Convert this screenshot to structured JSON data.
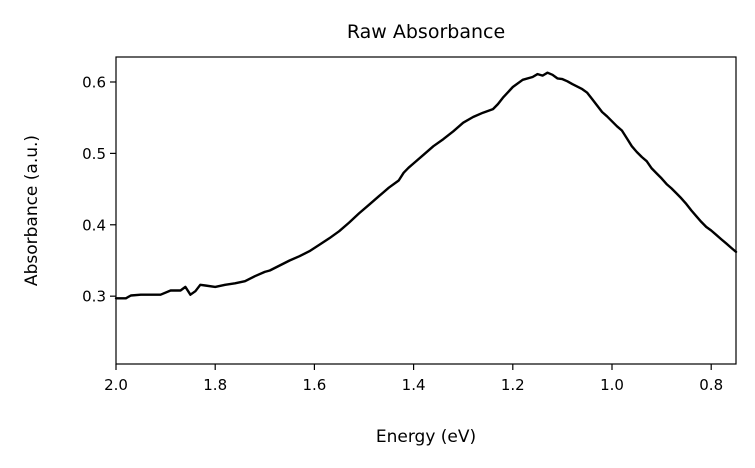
{
  "chart_data": {
    "type": "line",
    "title": "Raw Absorbance",
    "xlabel": "Energy (eV)",
    "ylabel": "Absorbance (a.u.)",
    "x_reversed": true,
    "xlim": [
      2.0,
      0.75
    ],
    "ylim": [
      0.205,
      0.635
    ],
    "x_ticks": [
      2.0,
      1.8,
      1.6,
      1.4,
      1.2,
      1.0,
      0.8
    ],
    "x_tick_labels": [
      "2.0",
      "1.8",
      "1.6",
      "1.4",
      "1.2",
      "1.0",
      "0.8"
    ],
    "y_ticks": [
      0.3,
      0.4,
      0.5,
      0.6
    ],
    "y_tick_labels": [
      "0.3",
      "0.4",
      "0.5",
      "0.6"
    ],
    "grid": false,
    "line_color": "#000000",
    "series": [
      {
        "x": [
          2.0,
          1.98,
          1.97,
          1.95,
          1.93,
          1.91,
          1.89,
          1.87,
          1.86,
          1.85,
          1.84,
          1.83,
          1.82,
          1.8,
          1.78,
          1.76,
          1.74,
          1.72,
          1.7,
          1.69,
          1.67,
          1.65,
          1.63,
          1.61,
          1.59,
          1.57,
          1.55,
          1.53,
          1.51,
          1.49,
          1.47,
          1.45,
          1.43,
          1.42,
          1.41,
          1.4,
          1.38,
          1.36,
          1.34,
          1.32,
          1.3,
          1.28,
          1.26,
          1.24,
          1.23,
          1.22,
          1.2,
          1.18,
          1.16,
          1.15,
          1.14,
          1.13,
          1.12,
          1.11,
          1.1,
          1.09,
          1.08,
          1.06,
          1.05,
          1.04,
          1.03,
          1.02,
          1.01,
          1.0,
          0.99,
          0.98,
          0.97,
          0.96,
          0.95,
          0.94,
          0.93,
          0.92,
          0.91,
          0.9,
          0.89,
          0.88,
          0.87,
          0.86,
          0.85,
          0.84,
          0.83,
          0.82,
          0.81,
          0.8,
          0.79,
          0.78,
          0.77,
          0.76,
          0.75
        ],
        "y": [
          0.297,
          0.297,
          0.301,
          0.302,
          0.302,
          0.302,
          0.308,
          0.308,
          0.313,
          0.302,
          0.307,
          0.316,
          0.315,
          0.313,
          0.316,
          0.318,
          0.321,
          0.328,
          0.334,
          0.336,
          0.343,
          0.35,
          0.356,
          0.363,
          0.372,
          0.381,
          0.391,
          0.403,
          0.416,
          0.428,
          0.44,
          0.452,
          0.462,
          0.473,
          0.48,
          0.486,
          0.498,
          0.51,
          0.52,
          0.531,
          0.543,
          0.551,
          0.557,
          0.562,
          0.569,
          0.578,
          0.593,
          0.603,
          0.607,
          0.611,
          0.609,
          0.613,
          0.61,
          0.605,
          0.604,
          0.601,
          0.597,
          0.59,
          0.585,
          0.576,
          0.567,
          0.558,
          0.552,
          0.545,
          0.538,
          0.532,
          0.521,
          0.51,
          0.502,
          0.495,
          0.489,
          0.479,
          0.472,
          0.465,
          0.457,
          0.451,
          0.444,
          0.437,
          0.429,
          0.42,
          0.412,
          0.404,
          0.397,
          0.392,
          0.386,
          0.38,
          0.374,
          0.368,
          0.362
        ]
      }
    ]
  }
}
